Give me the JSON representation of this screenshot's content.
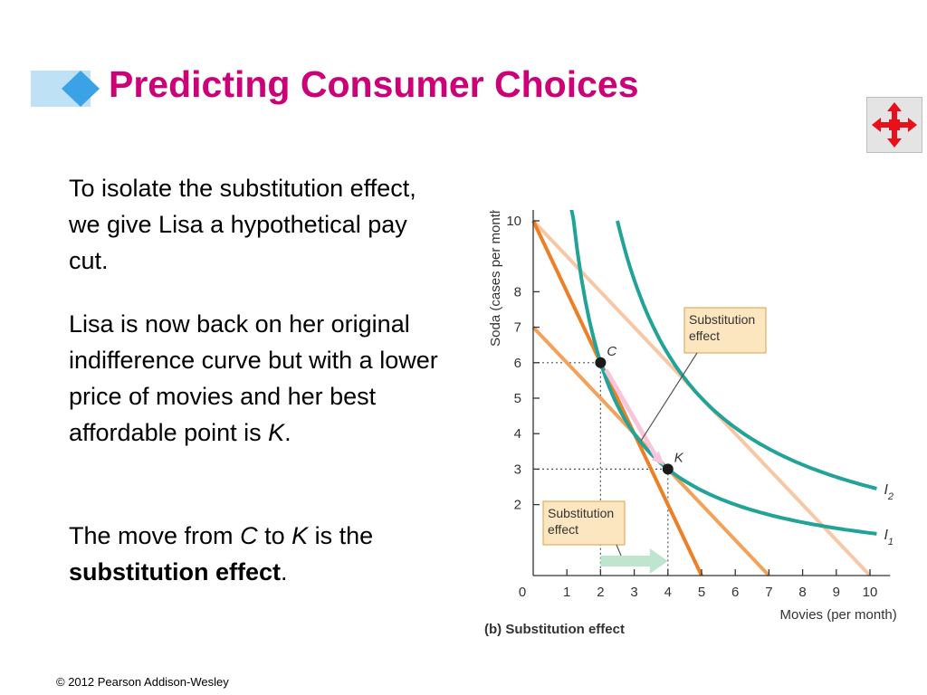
{
  "slide": {
    "title": "Predicting Consumer Choices",
    "footer": "© 2012 Pearson Addison-Wesley",
    "title_color": "#cc0077"
  },
  "nav": {
    "icon": "move-arrows-icon",
    "icon_color": "#e8101a"
  },
  "body": {
    "p1": "To isolate the substitution effect, we give Lisa a hypothetical pay cut.",
    "p2_before": "Lisa is now back on her original indifference curve but with a lower price of movies and her best affordable point is ",
    "p2_k": "K",
    "p2_after": ".",
    "p3_a": "The move from ",
    "p3_c": "C",
    "p3_b": " to ",
    "p3_k": "K",
    "p3_c2": " is the ",
    "p3_bold": "substitution effect",
    "p3_end": "."
  },
  "chart_data": {
    "type": "line",
    "caption": "(b) Substitution effect",
    "xlabel": "Movies (per month)",
    "ylabel": "Soda (cases per month)",
    "xlim": [
      0,
      10
    ],
    "ylim": [
      0,
      10
    ],
    "x_ticks": [
      0,
      1,
      2,
      3,
      4,
      5,
      6,
      7,
      8,
      9,
      10
    ],
    "y_ticks": [
      2,
      3,
      4,
      5,
      6,
      7,
      8,
      10
    ],
    "budget_lines": [
      {
        "from": [
          0,
          10
        ],
        "to": [
          5,
          0
        ],
        "color": "#ee7f24"
      },
      {
        "from": [
          0,
          7
        ],
        "to": [
          7,
          0
        ],
        "color": "#f4a25a"
      },
      {
        "from": [
          0,
          10
        ],
        "to": [
          10,
          0
        ],
        "color": "#f8c8a6"
      }
    ],
    "indifference_curves": [
      {
        "name": "I",
        "subscript": "1",
        "k": 12.0,
        "x_start": 0.72,
        "x_end": 10.2,
        "color": "#22a398"
      },
      {
        "name": "I",
        "subscript": "2",
        "k": 25.0,
        "x_start": 2.5,
        "x_end": 10.2,
        "color": "#22a398"
      }
    ],
    "points": [
      {
        "label": "C",
        "x": 2,
        "y": 6
      },
      {
        "label": "K",
        "x": 4,
        "y": 3
      }
    ],
    "annotations": {
      "box_upper": {
        "line1": "Substitution",
        "line2": "effect"
      },
      "box_lower": {
        "line1": "Substitution",
        "line2": "effect"
      }
    },
    "colors": {
      "curve": "#22a398",
      "box_fill": "#fbe6bf",
      "box_border": "#d8a24a",
      "arrow": "#bfe5cf",
      "arrow_pink": "#f6c6dc"
    }
  }
}
